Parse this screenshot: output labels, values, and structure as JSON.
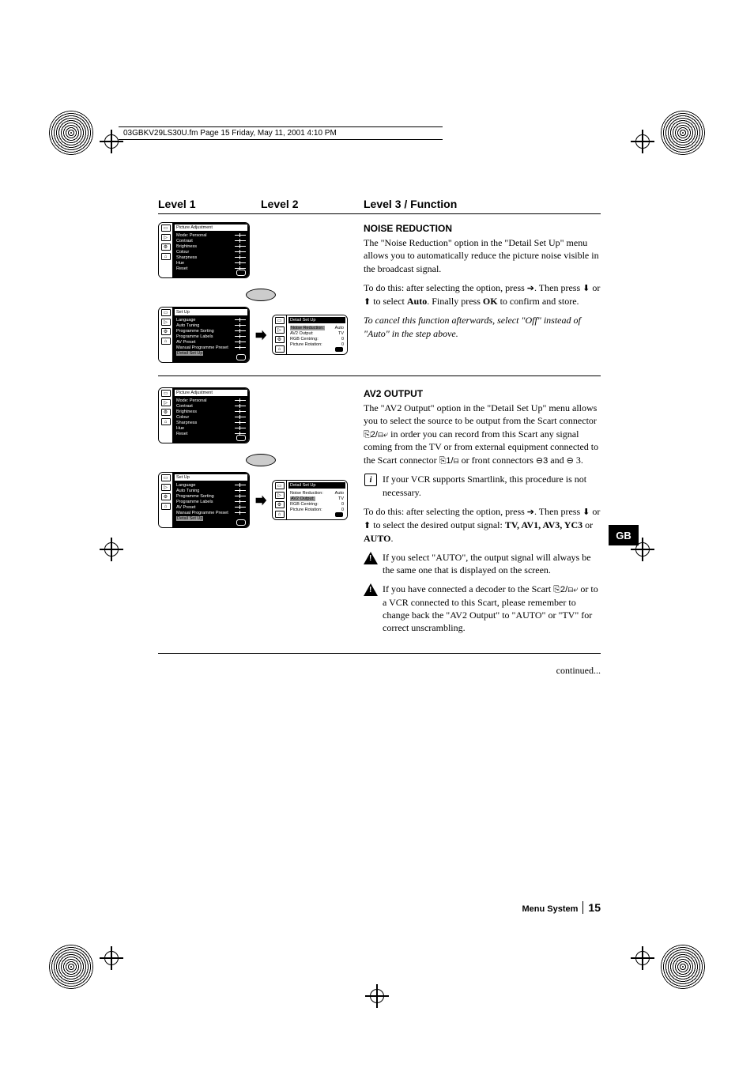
{
  "header_bar": "03GBKV29LS30U.fm  Page 15  Friday, May 11, 2001  4:10 PM",
  "col_headers": {
    "c1": "Level 1",
    "c2": "Level 2",
    "c3": "Level 3 / Function"
  },
  "side_tab": "GB",
  "footer": {
    "label": "Menu System",
    "page": "15"
  },
  "continued": "continued...",
  "osd_picture": {
    "title": "Picture Adjustment",
    "items": [
      "Mode:  Personal",
      "Contrast",
      "Brightness",
      "Colour",
      "Sharpness",
      "Hue",
      "Reset"
    ]
  },
  "osd_setup": {
    "title": "Set Up",
    "items": [
      "Language",
      "Auto Tuning",
      "Programme Sorting",
      "Programme Labels",
      "AV Preset",
      "Manual Programme Preset"
    ],
    "highlight": "Detail Set Up"
  },
  "osd_detail_a": {
    "title": "Detail Set Up",
    "rows": [
      [
        "Noise Reduction:",
        "Auto",
        true
      ],
      [
        "AV2 Output:",
        "TV",
        false
      ],
      [
        "RGB Centring:",
        "0",
        false
      ],
      [
        "Picture Rotation:",
        "0",
        false
      ]
    ]
  },
  "osd_detail_b": {
    "title": "Detail Set Up",
    "rows": [
      [
        "Noise Reduction:",
        "Auto",
        false
      ],
      [
        "AV2 Output:",
        "TV",
        true
      ],
      [
        "RGB Centring:",
        "0",
        false
      ],
      [
        "Picture Rotation:",
        "0",
        false
      ]
    ]
  },
  "sec_noise": {
    "title": "NOISE REDUCTION",
    "p1": "The \"Noise Reduction\" option in the \"Detail Set Up\" menu allows you to automatically reduce the picture noise visible in the broadcast signal.",
    "p2a": "To do this: after selecting the option, press  ",
    "p2b": ". Then press ",
    "p2c": " or ",
    "p2d": " to select ",
    "p2e": ". Finally press ",
    "p2_auto": "Auto",
    "p2_ok": "OK",
    "p2f": " to confirm and store.",
    "p3": "To cancel this function afterwards, select \"Off\" instead of \"Auto\" in the step above."
  },
  "sec_av2": {
    "title": "AV2 OUTPUT",
    "p1a": "The \"AV2 Output\" option in the \"Detail Set Up\" menu allows you to select the source to be output from the Scart connector ",
    "p1b": " in order you can record  from this Scart any signal coming from the TV or from external equipment connected to the Scart connector ",
    "p1c": " or front connectors ",
    "p1d": " and ",
    "p1e": " 3.",
    "sym_s2": "⎘2/⊟⤶",
    "sym_s1": "⎘1/⊟",
    "sym_c3": "⊖3",
    "sym_c": "⊖",
    "info": "If your VCR supports Smartlink, this procedure is not necessary.",
    "p2a": "To do this: after selecting the option, press ",
    "p2b": ". Then press ",
    "p2c": " or ",
    "p2d": " to select the desired output signal: ",
    "p2_opts": "TV, AV1, AV3, YC3",
    "p2_or": " or ",
    "p2_auto": "AUTO",
    "p2e": ".",
    "warn1": "If you select \"AUTO\", the output signal will always be the same one that is displayed on the screen.",
    "warn2a": "If you have connected a decoder to the Scart ",
    "warn2b": " or to a VCR connected to this Scart, please remember to change back the \"AV2 Output\" to \"AUTO\" or \"TV\" for correct unscrambling."
  },
  "arrows": {
    "right": "➔",
    "down": "⬇",
    "up": "⬆"
  }
}
